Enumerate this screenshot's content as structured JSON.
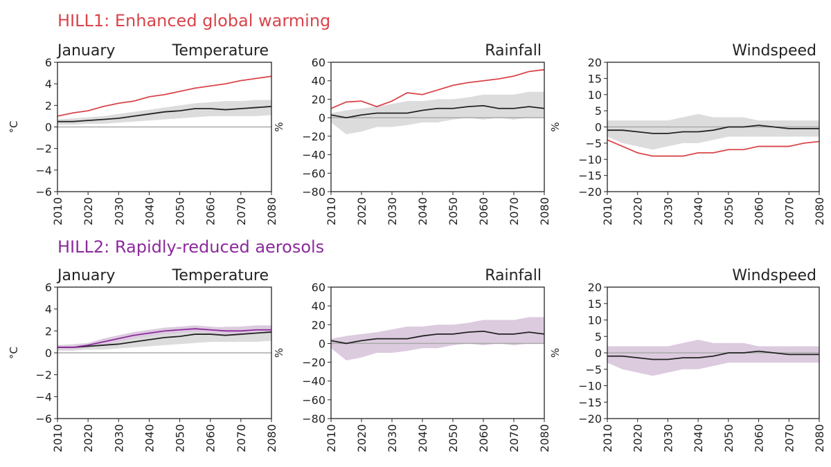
{
  "groups": [
    {
      "title": "HILL1: Enhanced global warming",
      "color": "#d9444a"
    },
    {
      "title": "HILL2: Rapidly-reduced aerosols",
      "color": "#8b2a9b"
    }
  ],
  "month_label": "January",
  "colors": {
    "grey_band": "#dcdcdc",
    "purple_band": "#dccbdf",
    "black": "#222222",
    "red": "#d9444a",
    "purple": "#8b2a9b",
    "zero_line": "#aaaaaa"
  },
  "chart_data": [
    {
      "type": "line",
      "group": 0,
      "title": "Temperature",
      "ylabel": "°C",
      "ylim": [
        -6,
        6
      ],
      "yticks": [
        6,
        4,
        2,
        0,
        -2,
        -4,
        -6
      ],
      "xlim": [
        2010,
        2080
      ],
      "xticks": [
        2010,
        2020,
        2030,
        2040,
        2050,
        2060,
        2070,
        2080
      ],
      "x": [
        2010,
        2015,
        2020,
        2025,
        2030,
        2035,
        2040,
        2045,
        2050,
        2055,
        2060,
        2065,
        2070,
        2075,
        2080
      ],
      "bands": [
        {
          "color": "grey",
          "low": [
            0.2,
            0.2,
            0.3,
            0.3,
            0.4,
            0.5,
            0.6,
            0.7,
            0.8,
            0.9,
            1.0,
            1.0,
            1.0,
            1.0,
            1.1
          ],
          "high": [
            0.7,
            0.8,
            0.9,
            1.0,
            1.2,
            1.4,
            1.6,
            1.8,
            2.0,
            2.2,
            2.3,
            2.4,
            2.4,
            2.5,
            2.5
          ]
        }
      ],
      "series": [
        {
          "color": "red",
          "values": [
            1.0,
            1.3,
            1.5,
            1.9,
            2.2,
            2.4,
            2.8,
            3.0,
            3.3,
            3.6,
            3.8,
            4.0,
            4.3,
            4.5,
            4.7
          ]
        },
        {
          "color": "black",
          "values": [
            0.5,
            0.5,
            0.6,
            0.7,
            0.8,
            1.0,
            1.2,
            1.4,
            1.5,
            1.7,
            1.7,
            1.6,
            1.7,
            1.8,
            1.9
          ]
        }
      ]
    },
    {
      "type": "line",
      "group": 0,
      "title": "Rainfall",
      "ylabel": "%",
      "ylim": [
        -80,
        60
      ],
      "yticks": [
        60,
        40,
        20,
        0,
        -20,
        -40,
        -60,
        -80
      ],
      "xlim": [
        2010,
        2080
      ],
      "xticks": [
        2010,
        2020,
        2030,
        2040,
        2050,
        2060,
        2070,
        2080
      ],
      "x": [
        2010,
        2015,
        2020,
        2025,
        2030,
        2035,
        2040,
        2045,
        2050,
        2055,
        2060,
        2065,
        2070,
        2075,
        2080
      ],
      "bands": [
        {
          "color": "grey",
          "low": [
            -5,
            -18,
            -15,
            -10,
            -10,
            -8,
            -5,
            -5,
            -2,
            0,
            -2,
            0,
            -2,
            0,
            0
          ],
          "high": [
            5,
            8,
            10,
            12,
            15,
            18,
            18,
            20,
            20,
            22,
            25,
            25,
            25,
            28,
            28
          ]
        }
      ],
      "series": [
        {
          "color": "red",
          "values": [
            10,
            17,
            18,
            12,
            18,
            27,
            25,
            30,
            35,
            38,
            40,
            42,
            45,
            50,
            52
          ]
        },
        {
          "color": "black",
          "values": [
            3,
            0,
            3,
            5,
            5,
            5,
            8,
            10,
            10,
            12,
            13,
            10,
            10,
            12,
            10
          ]
        }
      ]
    },
    {
      "type": "line",
      "group": 0,
      "title": "Windspeed",
      "ylabel": "%",
      "ylim": [
        -20,
        20
      ],
      "yticks": [
        20,
        15,
        10,
        5,
        0,
        -5,
        -10,
        -15,
        -20
      ],
      "xlim": [
        2010,
        2080
      ],
      "xticks": [
        2010,
        2020,
        2030,
        2040,
        2050,
        2060,
        2070,
        2080
      ],
      "x": [
        2010,
        2015,
        2020,
        2025,
        2030,
        2035,
        2040,
        2045,
        2050,
        2055,
        2060,
        2065,
        2070,
        2075,
        2080
      ],
      "bands": [
        {
          "color": "grey",
          "low": [
            -3,
            -5,
            -6,
            -7,
            -6,
            -5,
            -5,
            -4,
            -3,
            -3,
            -3,
            -3,
            -3,
            -3,
            -3
          ],
          "high": [
            2,
            2,
            2,
            2,
            2,
            3,
            4,
            3,
            3,
            3,
            2,
            2,
            2,
            2,
            2
          ]
        }
      ],
      "series": [
        {
          "color": "red",
          "values": [
            -4,
            -6,
            -8,
            -9,
            -9,
            -9,
            -8,
            -8,
            -7,
            -7,
            -6,
            -6,
            -6,
            -5,
            -4.5
          ]
        },
        {
          "color": "black",
          "values": [
            -1,
            -1,
            -1.5,
            -2,
            -2,
            -1.5,
            -1.5,
            -1,
            0,
            0,
            0.5,
            0,
            -0.5,
            -0.5,
            -0.5
          ]
        }
      ]
    },
    {
      "type": "line",
      "group": 1,
      "title": "Temperature",
      "ylabel": "°C",
      "ylim": [
        -6,
        6
      ],
      "yticks": [
        6,
        4,
        2,
        0,
        -2,
        -4,
        -6
      ],
      "xlim": [
        2010,
        2080
      ],
      "xticks": [
        2010,
        2020,
        2030,
        2040,
        2050,
        2060,
        2070,
        2080
      ],
      "x": [
        2010,
        2015,
        2020,
        2025,
        2030,
        2035,
        2040,
        2045,
        2050,
        2055,
        2060,
        2065,
        2070,
        2075,
        2080
      ],
      "bands": [
        {
          "color": "grey",
          "low": [
            0.2,
            0.2,
            0.3,
            0.3,
            0.4,
            0.5,
            0.6,
            0.7,
            0.8,
            0.9,
            1.0,
            1.0,
            1.0,
            1.0,
            1.1
          ],
          "high": [
            0.7,
            0.8,
            0.9,
            1.0,
            1.2,
            1.4,
            1.6,
            1.8,
            2.0,
            2.2,
            2.3,
            2.4,
            2.4,
            2.5,
            2.5
          ]
        },
        {
          "color": "purple",
          "low": [
            0.3,
            0.3,
            0.5,
            0.7,
            1.0,
            1.3,
            1.5,
            1.7,
            1.8,
            1.9,
            1.8,
            1.7,
            1.7,
            1.8,
            1.8
          ],
          "high": [
            0.7,
            0.7,
            0.9,
            1.3,
            1.6,
            1.9,
            2.1,
            2.3,
            2.4,
            2.5,
            2.4,
            2.3,
            2.4,
            2.5,
            2.5
          ]
        }
      ],
      "series": [
        {
          "color": "black",
          "values": [
            0.5,
            0.5,
            0.6,
            0.7,
            0.8,
            1.0,
            1.2,
            1.4,
            1.5,
            1.7,
            1.7,
            1.6,
            1.7,
            1.8,
            1.9
          ]
        },
        {
          "color": "purple",
          "values": [
            0.5,
            0.5,
            0.7,
            1.0,
            1.3,
            1.6,
            1.8,
            2.0,
            2.1,
            2.2,
            2.1,
            2.0,
            2.0,
            2.1,
            2.1
          ]
        }
      ]
    },
    {
      "type": "line",
      "group": 1,
      "title": "Rainfall",
      "ylabel": "%",
      "ylim": [
        -80,
        60
      ],
      "yticks": [
        60,
        40,
        20,
        0,
        -20,
        -40,
        -60,
        -80
      ],
      "xlim": [
        2010,
        2080
      ],
      "xticks": [
        2010,
        2020,
        2030,
        2040,
        2050,
        2060,
        2070,
        2080
      ],
      "x": [
        2010,
        2015,
        2020,
        2025,
        2030,
        2035,
        2040,
        2045,
        2050,
        2055,
        2060,
        2065,
        2070,
        2075,
        2080
      ],
      "bands": [
        {
          "color": "purple",
          "low": [
            -5,
            -18,
            -15,
            -10,
            -10,
            -8,
            -5,
            -5,
            -2,
            0,
            -2,
            0,
            -2,
            0,
            0
          ],
          "high": [
            5,
            8,
            10,
            12,
            15,
            18,
            18,
            20,
            20,
            22,
            25,
            25,
            25,
            28,
            28
          ]
        }
      ],
      "series": [
        {
          "color": "black",
          "values": [
            3,
            0,
            3,
            5,
            5,
            5,
            8,
            10,
            10,
            12,
            13,
            10,
            10,
            12,
            10
          ]
        }
      ]
    },
    {
      "type": "line",
      "group": 1,
      "title": "Windspeed",
      "ylabel": "%",
      "ylim": [
        -20,
        20
      ],
      "yticks": [
        20,
        15,
        10,
        5,
        0,
        -5,
        -10,
        -15,
        -20
      ],
      "xlim": [
        2010,
        2080
      ],
      "xticks": [
        2010,
        2020,
        2030,
        2040,
        2050,
        2060,
        2070,
        2080
      ],
      "x": [
        2010,
        2015,
        2020,
        2025,
        2030,
        2035,
        2040,
        2045,
        2050,
        2055,
        2060,
        2065,
        2070,
        2075,
        2080
      ],
      "bands": [
        {
          "color": "purple",
          "low": [
            -3,
            -5,
            -6,
            -7,
            -6,
            -5,
            -5,
            -4,
            -3,
            -3,
            -3,
            -3,
            -3,
            -3,
            -3
          ],
          "high": [
            2,
            2,
            2,
            2,
            2,
            3,
            4,
            3,
            3,
            3,
            2,
            2,
            2,
            2,
            2
          ]
        }
      ],
      "series": [
        {
          "color": "black",
          "values": [
            -1,
            -1,
            -1.5,
            -2,
            -2,
            -1.5,
            -1.5,
            -1,
            0,
            0,
            0.5,
            0,
            -0.5,
            -0.5,
            -0.5
          ]
        }
      ]
    }
  ]
}
